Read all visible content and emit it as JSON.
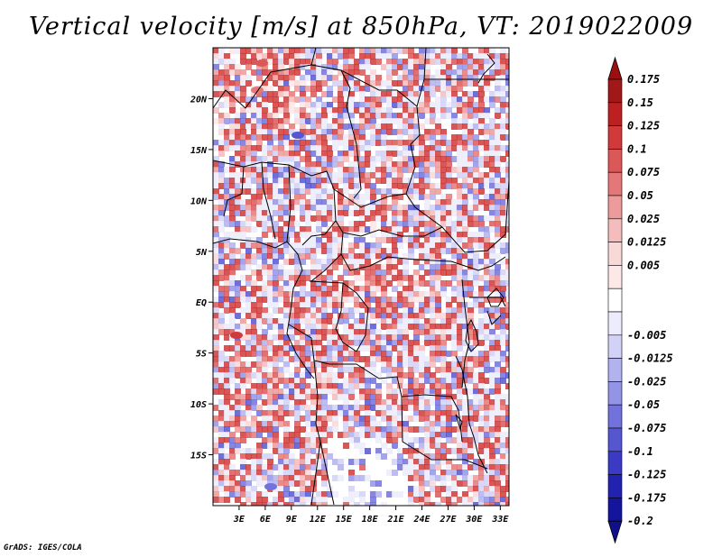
{
  "title": "Vertical velocity [m/s] at 850hPa, VT: 2019022009",
  "credit": "GrADS: IGES/COLA",
  "map": {
    "lon_range": [
      0,
      34
    ],
    "lat_range": [
      -20,
      25
    ],
    "lon_ticks": [
      {
        "value": 3,
        "label": "3E"
      },
      {
        "value": 6,
        "label": "6E"
      },
      {
        "value": 9,
        "label": "9E"
      },
      {
        "value": 12,
        "label": "12E"
      },
      {
        "value": 15,
        "label": "15E"
      },
      {
        "value": 18,
        "label": "18E"
      },
      {
        "value": 21,
        "label": "21E"
      },
      {
        "value": 24,
        "label": "24E"
      },
      {
        "value": 27,
        "label": "27E"
      },
      {
        "value": 30,
        "label": "30E"
      },
      {
        "value": 33,
        "label": "33E"
      }
    ],
    "lat_ticks": [
      {
        "value": 20,
        "label": "20N"
      },
      {
        "value": 15,
        "label": "15N"
      },
      {
        "value": 10,
        "label": "10N"
      },
      {
        "value": 5,
        "label": "5N"
      },
      {
        "value": 0,
        "label": "EQ"
      },
      {
        "value": -5,
        "label": "5S"
      },
      {
        "value": -10,
        "label": "10S"
      },
      {
        "value": -15,
        "label": "15S"
      }
    ]
  },
  "colorbar": {
    "levels": [
      {
        "label": "0.175",
        "color": "#a01818"
      },
      {
        "label": "0.15",
        "color": "#bc2020"
      },
      {
        "label": "0.125",
        "color": "#d03a3a"
      },
      {
        "label": "0.1",
        "color": "#dc5858"
      },
      {
        "label": "0.075",
        "color": "#e47878"
      },
      {
        "label": "0.05",
        "color": "#ec9a9a"
      },
      {
        "label": "0.025",
        "color": "#f4bcbc"
      },
      {
        "label": "0.0125",
        "color": "#f9d8d8"
      },
      {
        "label": "0.005",
        "color": "#fde8e8"
      },
      {
        "label": "",
        "color": "#ffffff"
      },
      {
        "label": "-0.005",
        "color": "#ececfc"
      },
      {
        "label": "-0.0125",
        "color": "#d2d2f6"
      },
      {
        "label": "-0.025",
        "color": "#b2b2ef"
      },
      {
        "label": "-0.05",
        "color": "#9494e6"
      },
      {
        "label": "-0.075",
        "color": "#7272dc"
      },
      {
        "label": "-0.1",
        "color": "#5656d0"
      },
      {
        "label": "-0.125",
        "color": "#3a3ac4"
      },
      {
        "label": "-0.175",
        "color": "#2222b0"
      },
      {
        "label": "-0.2",
        "color": "#14149c"
      }
    ],
    "top_color": "#9a1010",
    "bottom_color": "#10108a"
  }
}
